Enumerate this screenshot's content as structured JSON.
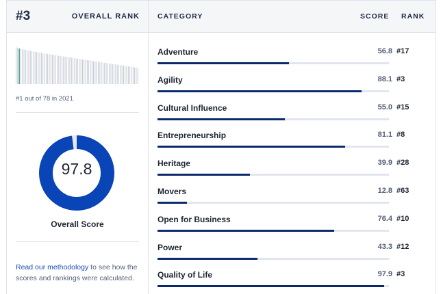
{
  "overall": {
    "rank": "#3",
    "rank_label": "OVERALL RANK",
    "rank_caption": "#1 out of 78 in 2021",
    "score": "97.8",
    "score_fraction": 0.978,
    "score_label": "Overall Score",
    "highlight_position": 3,
    "total_count": 78
  },
  "methodology": {
    "link_text": "Read our methodology",
    "rest_text": " to see how the scores and rankings were calculated."
  },
  "table": {
    "headers": {
      "category": "CATEGORY",
      "score": "SCORE",
      "rank": "RANK"
    },
    "rows": [
      {
        "name": "Adventure",
        "score": "56.8",
        "rank": "#17",
        "value": 56.8
      },
      {
        "name": "Agility",
        "score": "88.1",
        "rank": "#3",
        "value": 88.1
      },
      {
        "name": "Cultural Influence",
        "score": "55.0",
        "rank": "#15",
        "value": 55.0
      },
      {
        "name": "Entrepreneurship",
        "score": "81.1",
        "rank": "#8",
        "value": 81.1
      },
      {
        "name": "Heritage",
        "score": "39.9",
        "rank": "#28",
        "value": 39.9
      },
      {
        "name": "Movers",
        "score": "12.8",
        "rank": "#63",
        "value": 12.8
      },
      {
        "name": "Open for Business",
        "score": "76.4",
        "rank": "#10",
        "value": 76.4
      },
      {
        "name": "Power",
        "score": "43.3",
        "rank": "#12",
        "value": 43.3
      },
      {
        "name": "Quality of Life",
        "score": "97.9",
        "rank": "#3",
        "value": 97.9
      }
    ]
  },
  "colors": {
    "accent": "#0a2a6b",
    "donut": "#0a45b8",
    "donut_track": "#e7e9ee",
    "highlight": "#2f8f7a",
    "link": "#1a4eae"
  }
}
